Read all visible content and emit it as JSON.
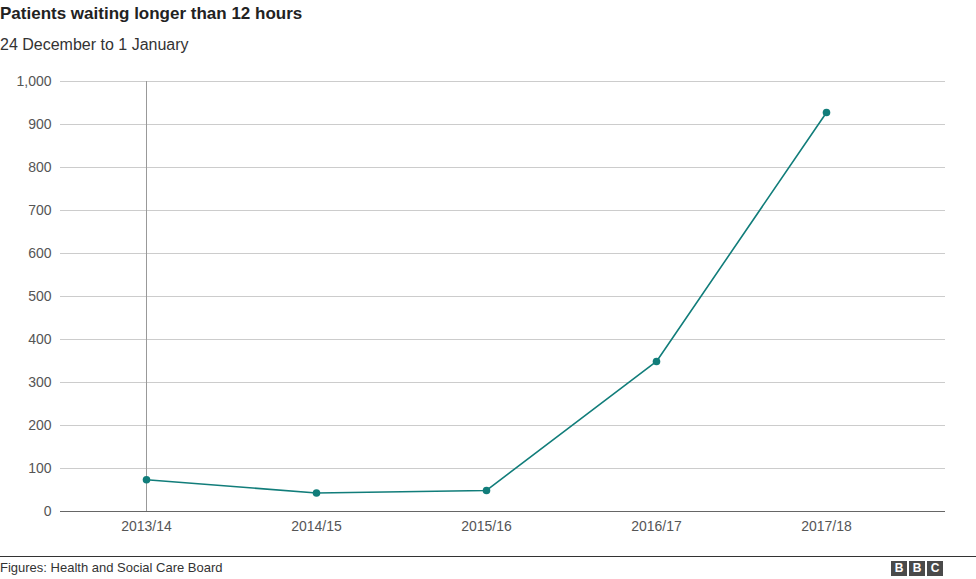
{
  "chart_data": {
    "type": "line",
    "title": "Patients waiting longer than 12 hours",
    "subtitle": "24 December to 1 January",
    "source": "Figures: Health and Social Care Board",
    "logo": "BBC",
    "categories": [
      "2013/14",
      "2014/15",
      "2015/16",
      "2016/17",
      "2017/18"
    ],
    "values": [
      74,
      43,
      49,
      349,
      928
    ],
    "color": "#117d7a",
    "marker": "circle",
    "ylim": [
      0,
      1000
    ],
    "yticks": [
      0,
      100,
      200,
      300,
      400,
      500,
      600,
      700,
      800,
      900,
      {
        "value": 1000,
        "label": "1,000"
      }
    ],
    "grid": true
  }
}
